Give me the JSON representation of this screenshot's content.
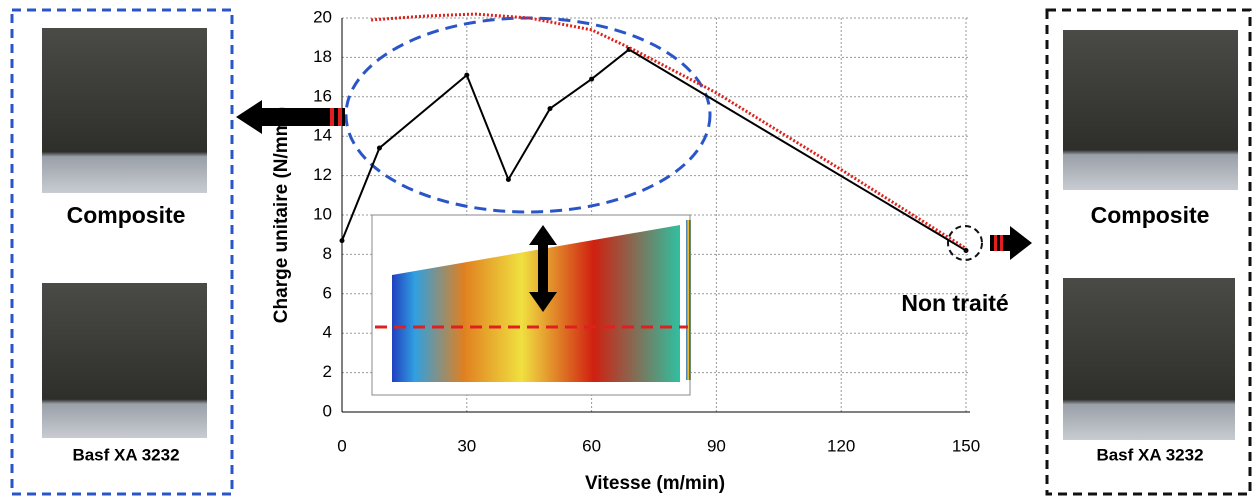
{
  "chart_data": {
    "type": "line",
    "x_label": "Vitesse (m/min)",
    "y_label": "Charge unitaire (N/mm²)",
    "xlim": [
      0,
      150
    ],
    "xticks": [
      0,
      30,
      60,
      90,
      120,
      150
    ],
    "ylim": [
      0,
      20
    ],
    "yticks": [
      0,
      2,
      4,
      6,
      8,
      10,
      12,
      14,
      16,
      18,
      20
    ],
    "grid": true,
    "series": [
      {
        "color": "#000000",
        "style": "solid",
        "markers": true,
        "x": [
          0,
          9,
          30,
          40,
          50,
          60,
          69,
          150
        ],
        "values": [
          8.7,
          13.4,
          17.1,
          11.8,
          15.4,
          16.9,
          18.4,
          8.2
        ]
      },
      {
        "color": "#e0201a",
        "style": "dotted",
        "markers": false,
        "x": [
          7,
          20,
          32,
          45,
          60,
          70,
          90,
          120,
          150
        ],
        "values": [
          19.9,
          20.1,
          20.2,
          20.0,
          19.4,
          18.4,
          16.2,
          12.3,
          8.3
        ]
      }
    ],
    "annotation": "Non traité"
  },
  "left_panel": {
    "captions": [
      "Composite",
      "Basf XA 3232"
    ]
  },
  "right_panel": {
    "captions": [
      "Composite",
      "Basf XA 3232"
    ]
  }
}
